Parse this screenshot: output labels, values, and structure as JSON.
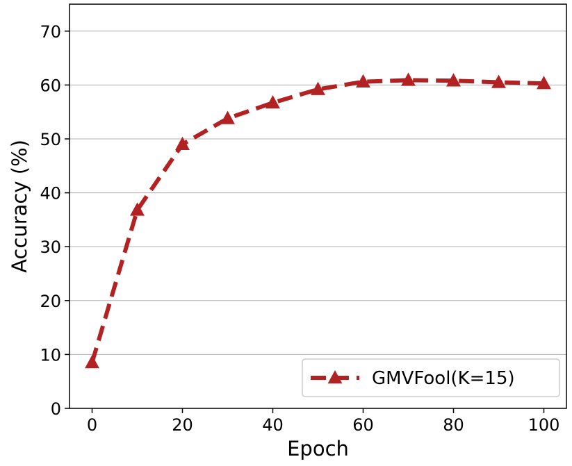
{
  "chart_data": {
    "type": "line",
    "title": "",
    "xlabel": "Epoch",
    "ylabel": "Accuracy (%)",
    "xlim": [
      -5,
      105
    ],
    "ylim": [
      0,
      75
    ],
    "xticks": [
      0,
      20,
      40,
      60,
      80,
      100
    ],
    "yticks": [
      0,
      10,
      20,
      30,
      40,
      50,
      60,
      70
    ],
    "grid": "horizontal",
    "legend_position": "lower-right",
    "series": [
      {
        "name": "GMVFool(K=15)",
        "color": "#b22222",
        "line_style": "dashed",
        "marker": "triangle",
        "x": [
          0,
          10,
          20,
          30,
          40,
          50,
          60,
          70,
          80,
          90,
          100
        ],
        "y": [
          8.5,
          36.8,
          49.0,
          53.8,
          56.7,
          59.2,
          60.6,
          60.9,
          60.8,
          60.5,
          60.3
        ]
      }
    ]
  }
}
